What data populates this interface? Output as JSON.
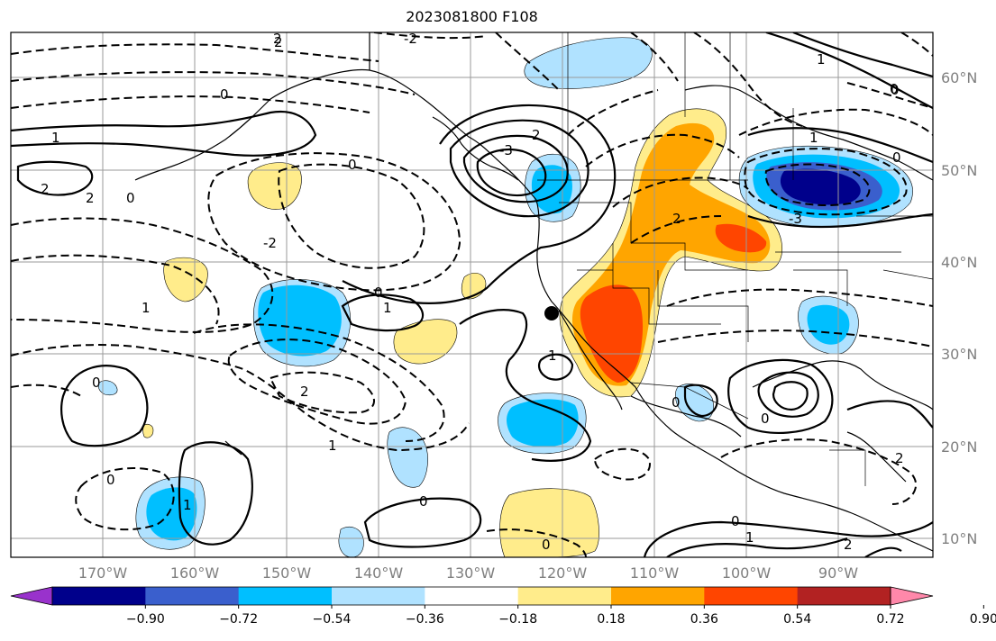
{
  "title": "2023081800 F108",
  "lat_labels": [
    "60°N",
    "50°N",
    "40°N",
    "30°N",
    "20°N",
    "10°N"
  ],
  "lon_labels": [
    "170°W",
    "160°W",
    "150°W",
    "140°W",
    "130°W",
    "120°W",
    "110°W",
    "100°W",
    "90°W"
  ],
  "colorbar": {
    "ticks": [
      "−0.90",
      "−0.72",
      "−0.54",
      "−0.36",
      "−0.18",
      "0.18",
      "0.36",
      "0.54",
      "0.72",
      "0.90"
    ],
    "colors": [
      "#9932cc",
      "#00008b",
      "#3a5fcd",
      "#00bfff",
      "#b0e2ff",
      "#ffffff",
      "#ffec8b",
      "#ffa500",
      "#ff4500",
      "#b22222",
      "#ff88aa"
    ]
  },
  "contour_labels": [
    {
      "id": "c1",
      "text": "2"
    },
    {
      "id": "c2",
      "text": "-2"
    },
    {
      "id": "c3",
      "text": "0"
    },
    {
      "id": "c4",
      "text": "1"
    },
    {
      "id": "c5",
      "text": "2"
    },
    {
      "id": "c6",
      "text": "2"
    },
    {
      "id": "c7",
      "text": "0"
    },
    {
      "id": "c8",
      "text": "-2"
    },
    {
      "id": "c9",
      "text": "0"
    },
    {
      "id": "c10",
      "text": "-3"
    },
    {
      "id": "c11",
      "text": "2"
    },
    {
      "id": "c12",
      "text": "0"
    },
    {
      "id": "c13",
      "text": "1"
    },
    {
      "id": "c14",
      "text": "1"
    },
    {
      "id": "c15",
      "text": "2"
    },
    {
      "id": "c16",
      "text": "1"
    },
    {
      "id": "c17",
      "text": "0"
    },
    {
      "id": "c18",
      "text": "0"
    },
    {
      "id": "c19",
      "text": "1"
    },
    {
      "id": "c20",
      "text": "-3"
    },
    {
      "id": "c21",
      "text": "2"
    },
    {
      "id": "c22",
      "text": "0"
    },
    {
      "id": "c23",
      "text": "1"
    },
    {
      "id": "c24",
      "text": "0"
    },
    {
      "id": "c25",
      "text": "0"
    },
    {
      "id": "c26",
      "text": "0"
    },
    {
      "id": "c27",
      "text": "0"
    },
    {
      "id": "c28",
      "text": "1"
    },
    {
      "id": "c29",
      "text": "2"
    },
    {
      "id": "c30",
      "text": "0"
    },
    {
      "id": "c31",
      "text": "2"
    },
    {
      "id": "c32",
      "text": "0"
    },
    {
      "id": "c33",
      "text": "1"
    },
    {
      "id": "c34",
      "text": "2"
    },
    {
      "id": "c35",
      "text": "1"
    },
    {
      "id": "c36",
      "text": "0"
    }
  ]
}
